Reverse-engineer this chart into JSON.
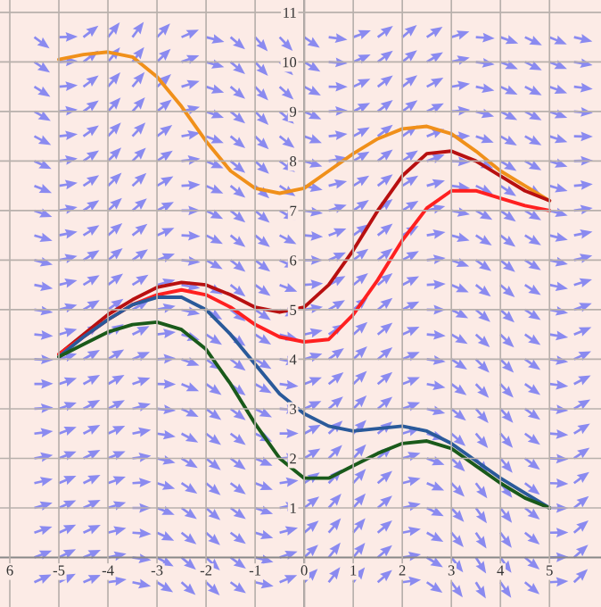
{
  "chart_data": {
    "type": "line",
    "xlim": [
      -6.2,
      6.05
    ],
    "ylim": [
      -1,
      11.25
    ],
    "xticks": [
      {
        "value": -6,
        "label": "6"
      },
      -5,
      -4,
      -3,
      -2,
      -1,
      0,
      1,
      2,
      3,
      4,
      5
    ],
    "yticks": [
      1,
      2,
      3,
      4,
      5,
      6,
      7,
      8,
      9,
      10,
      11
    ],
    "grid": true,
    "marker": "none",
    "line_style": "solid",
    "x": [
      -5,
      -4.5,
      -4,
      -3.5,
      -3,
      -2.5,
      -2,
      -1.5,
      -1,
      -0.5,
      0,
      0.5,
      1,
      1.5,
      2,
      2.5,
      3,
      3.5,
      4,
      4.5,
      5
    ],
    "series": [
      {
        "color": "#f0901a",
        "values": [
          10.05,
          10.15,
          10.2,
          10.1,
          9.7,
          9.1,
          8.4,
          7.8,
          7.45,
          7.35,
          7.45,
          7.8,
          8.15,
          8.45,
          8.65,
          8.7,
          8.55,
          8.2,
          7.8,
          7.5,
          7.2
        ]
      },
      {
        "color": "#b81010",
        "values": [
          4.1,
          4.5,
          4.9,
          5.2,
          5.45,
          5.55,
          5.5,
          5.3,
          5.05,
          4.95,
          5.05,
          5.5,
          6.2,
          7.0,
          7.7,
          8.15,
          8.2,
          8.0,
          7.7,
          7.4,
          7.2
        ]
      },
      {
        "color": "#ff2020",
        "values": [
          4.1,
          4.45,
          4.8,
          5.1,
          5.3,
          5.4,
          5.3,
          5.05,
          4.7,
          4.45,
          4.35,
          4.4,
          4.9,
          5.6,
          6.4,
          7.05,
          7.4,
          7.4,
          7.25,
          7.1,
          7.0
        ]
      },
      {
        "color": "#2a5a9a",
        "values": [
          4.05,
          4.45,
          4.8,
          5.1,
          5.25,
          5.25,
          5.0,
          4.5,
          3.9,
          3.3,
          2.9,
          2.65,
          2.55,
          2.6,
          2.65,
          2.55,
          2.3,
          1.95,
          1.6,
          1.3,
          1.0
        ]
      },
      {
        "color": "#1a5a1a",
        "values": [
          4.05,
          4.3,
          4.55,
          4.7,
          4.75,
          4.6,
          4.2,
          3.5,
          2.7,
          2.0,
          1.6,
          1.6,
          1.85,
          2.1,
          2.3,
          2.35,
          2.2,
          1.85,
          1.5,
          1.2,
          1.0
        ]
      }
    ]
  }
}
